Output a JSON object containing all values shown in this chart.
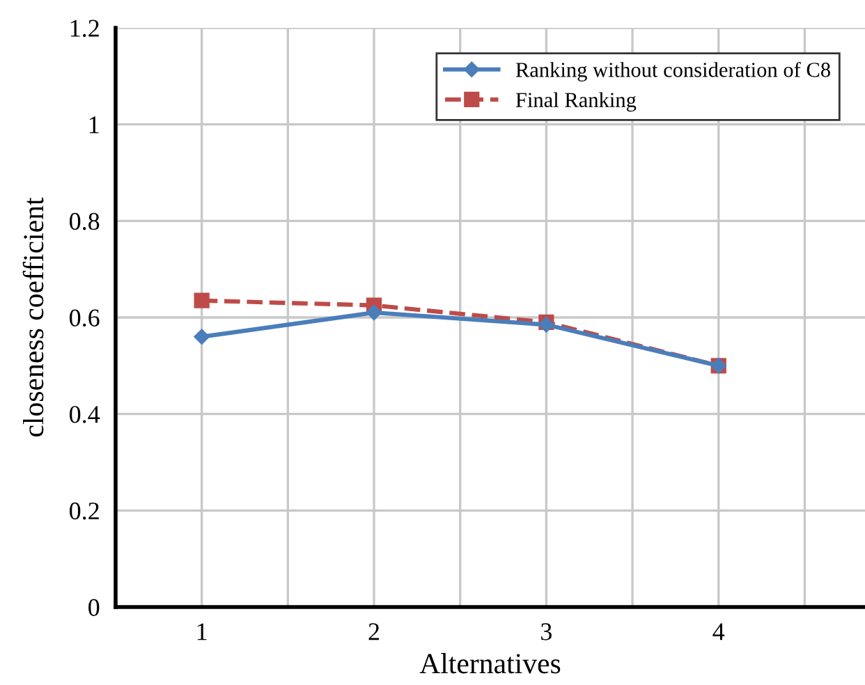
{
  "chart_data": {
    "type": "line",
    "xlabel": "Alternatives",
    "ylabel": "closeness coefficient",
    "x": [
      1,
      2,
      3,
      4
    ],
    "series": [
      {
        "name": "Ranking without consideration of C8",
        "color": "#4a7ebb",
        "values": [
          0.56,
          0.61,
          0.585,
          0.5
        ],
        "marker": "diamond",
        "line_style": "solid"
      },
      {
        "name": "Final Ranking",
        "color": "#be4b48",
        "values": [
          0.635,
          0.625,
          0.59,
          0.5
        ],
        "marker": "square",
        "line_style": "dashed"
      }
    ],
    "xlim": [
      0.5,
      4.85
    ],
    "xticks": [
      {
        "value": 0.5,
        "label": null
      },
      1,
      {
        "value": 1.5,
        "label": null
      },
      2,
      {
        "value": 2.5,
        "label": null
      },
      3,
      {
        "value": 3.5,
        "label": null
      },
      4,
      {
        "value": 4.5,
        "label": null
      }
    ],
    "ylim": [
      0,
      1.2
    ],
    "yticks": [
      0,
      0.2,
      0.4,
      0.6,
      0.8,
      1,
      1.2
    ],
    "grid": true,
    "legend": "top right"
  }
}
